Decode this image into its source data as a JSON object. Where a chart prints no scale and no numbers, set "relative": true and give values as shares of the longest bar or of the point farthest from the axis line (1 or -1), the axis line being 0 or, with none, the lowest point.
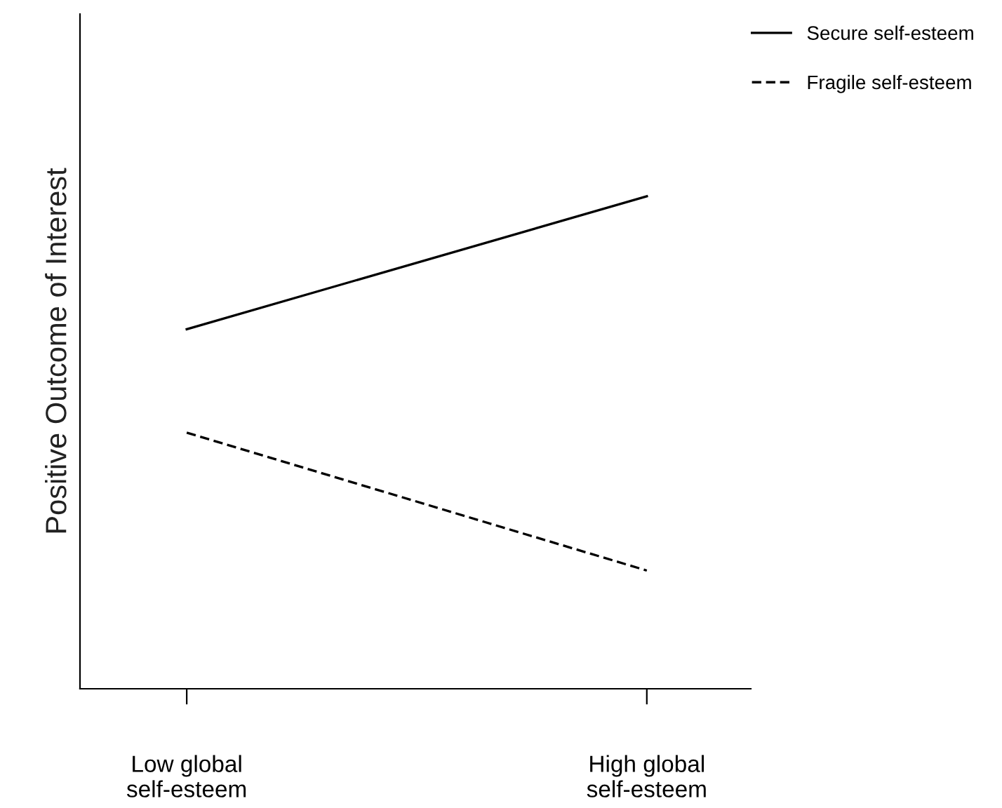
{
  "chart_data": {
    "type": "line",
    "relative": true,
    "ylabel": "Positive Outcome of Interest",
    "categories": [
      "Low global\nself-esteem",
      "High global\nself-esteem"
    ],
    "series": [
      {
        "name": "Secure self-esteem",
        "color": "#000000",
        "line_style": "solid",
        "values": [
          0.73,
          1
        ]
      },
      {
        "name": "Fragile self-esteem",
        "color": "#000000",
        "line_style": "dashed",
        "values": [
          0.52,
          0.24
        ]
      }
    ],
    "legend": "top right",
    "marker": "none",
    "grid": false
  }
}
